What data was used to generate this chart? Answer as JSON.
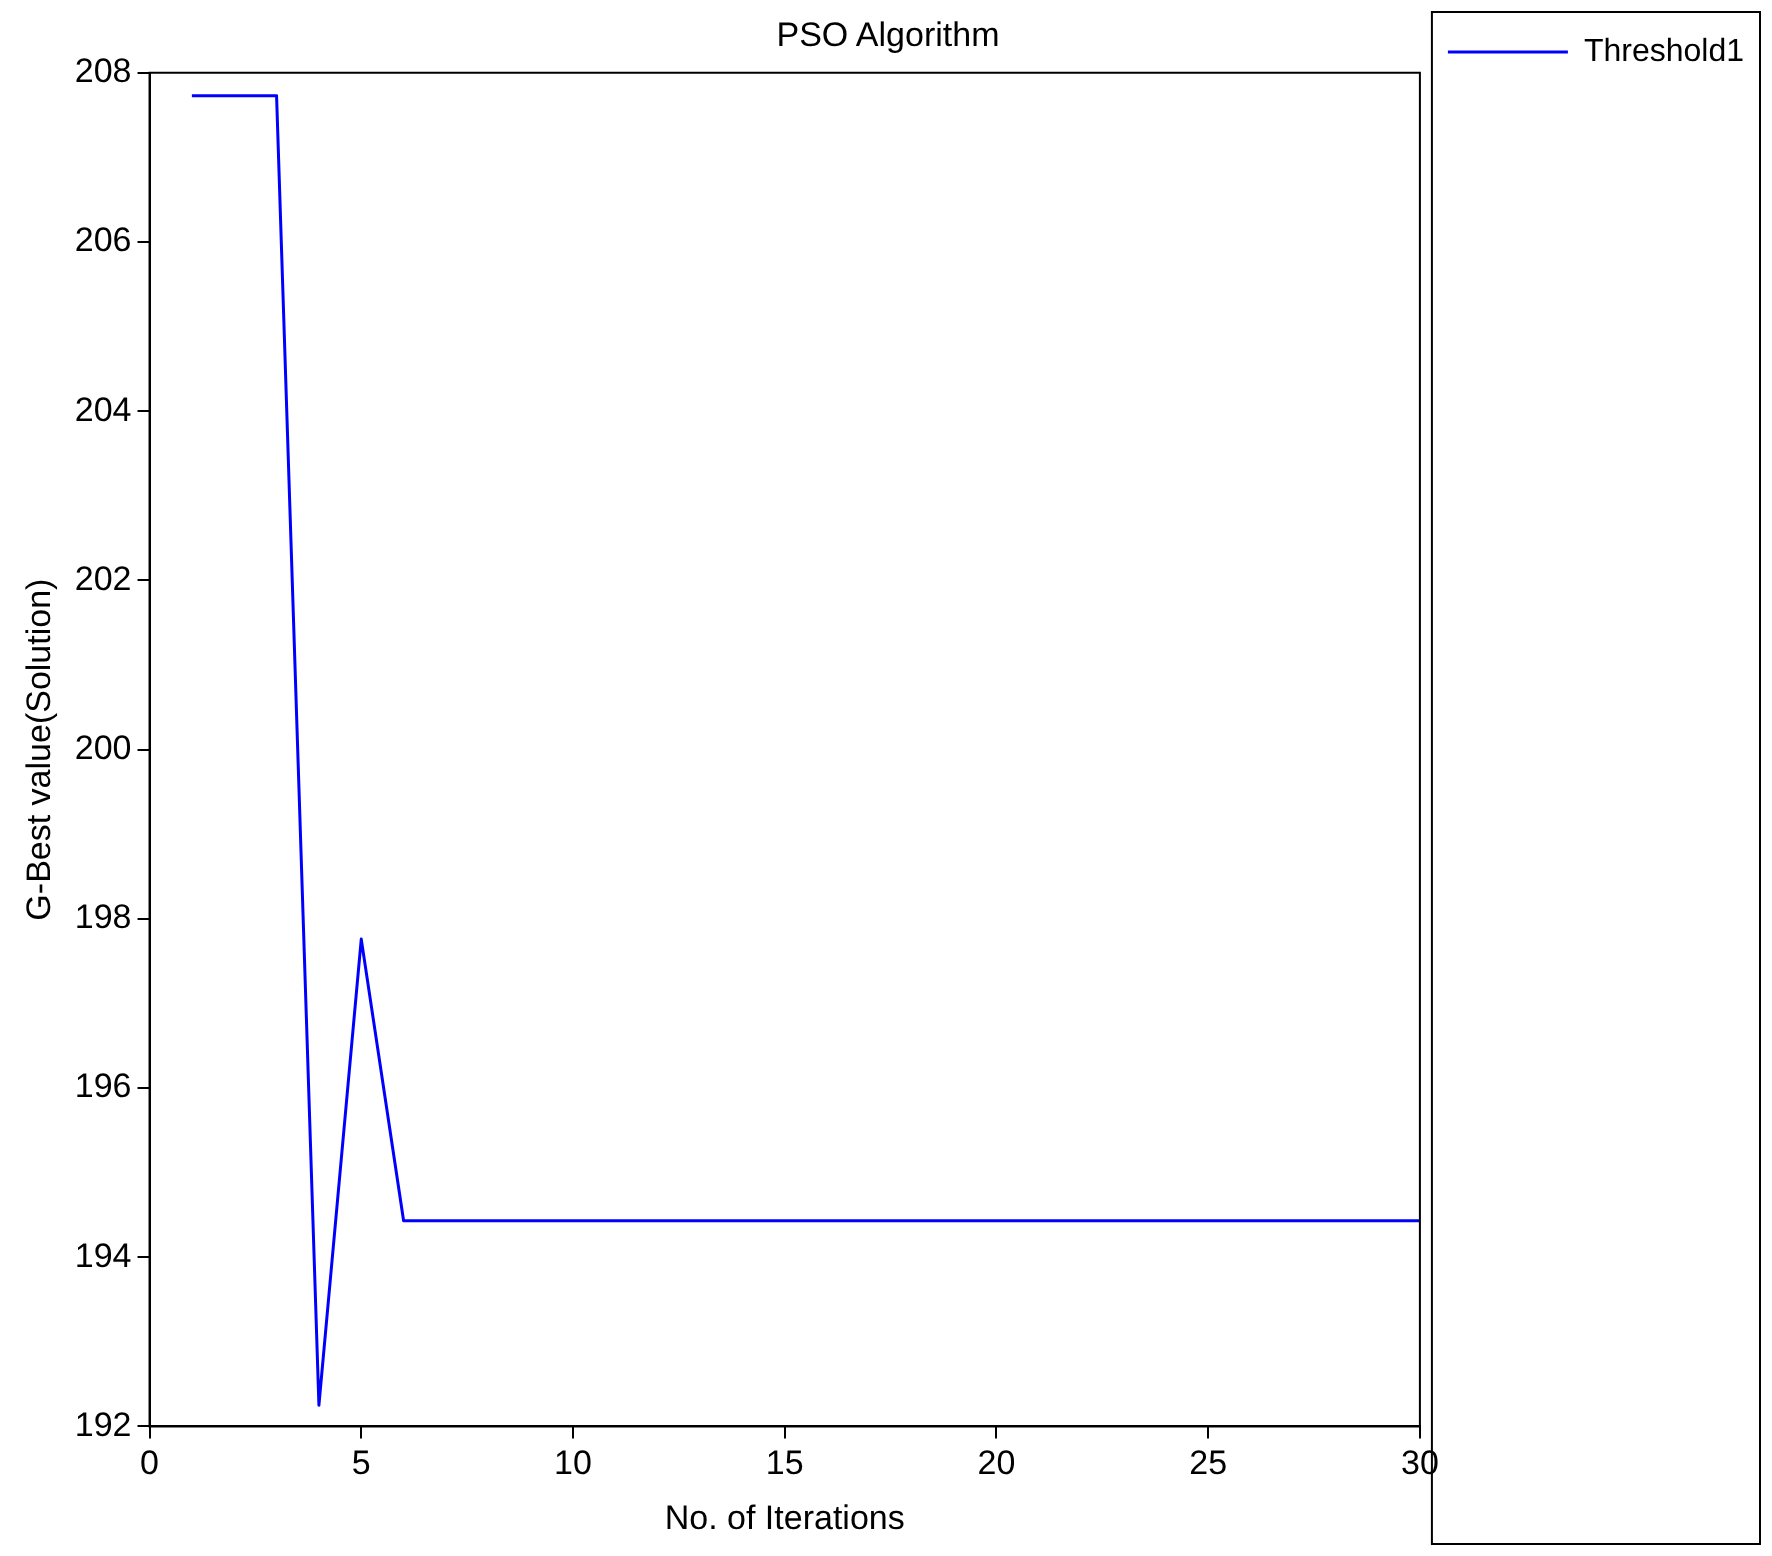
{
  "chart_data": {
    "type": "line",
    "title": "PSO Algorithm",
    "xlabel": "No. of Iterations",
    "ylabel": "G-Best value(Solution)",
    "x": [
      1,
      2,
      3,
      4,
      5,
      6,
      7,
      8,
      9,
      10,
      11,
      12,
      13,
      14,
      15,
      16,
      17,
      18,
      19,
      20,
      21,
      22,
      23,
      24,
      25,
      26,
      27,
      28,
      29,
      30
    ],
    "series": [
      {
        "name": "Threshold1",
        "color": "#0000ff",
        "values": [
          207.73,
          207.73,
          207.73,
          192.25,
          197.76,
          194.43,
          194.43,
          194.43,
          194.43,
          194.43,
          194.43,
          194.43,
          194.43,
          194.43,
          194.43,
          194.43,
          194.43,
          194.43,
          194.43,
          194.43,
          194.43,
          194.43,
          194.43,
          194.43,
          194.43,
          194.43,
          194.43,
          194.43,
          194.43,
          194.43
        ]
      }
    ],
    "xlim": [
      0,
      30
    ],
    "xticks": [
      0,
      5,
      10,
      15,
      20,
      25,
      30
    ],
    "ylim": [
      192,
      208
    ],
    "yticks": [
      192,
      194,
      196,
      198,
      200,
      202,
      204,
      206,
      208
    ],
    "grid": false,
    "legend": "top right",
    "marker": "none",
    "line_style": "solid"
  }
}
